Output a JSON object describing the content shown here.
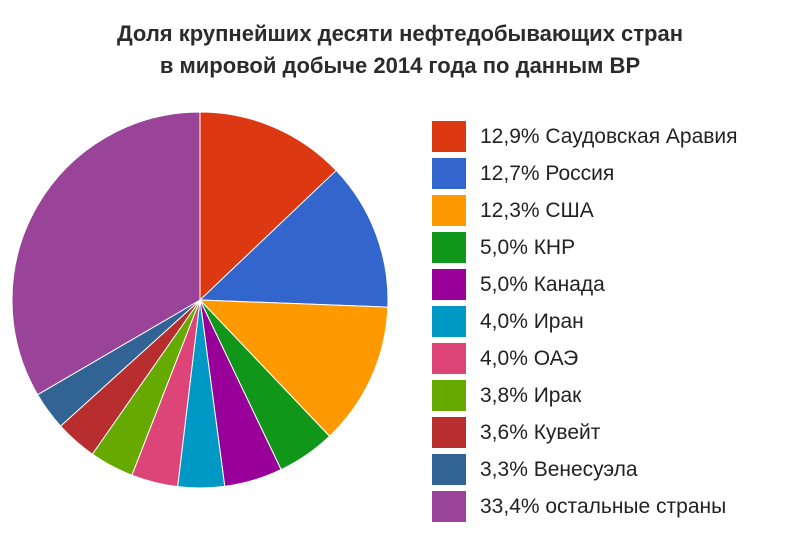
{
  "chart_data": {
    "type": "pie",
    "title_line1": "Доля крупнейших десяти нефтедобывающих стран",
    "title_line2": "в мировой добыче 2014 года по данным BP",
    "slices": [
      {
        "label": "12,9% Саудовская Аравия",
        "value": 12.9,
        "color": "#dc3912"
      },
      {
        "label": "12,7% Россия",
        "value": 12.7,
        "color": "#3366cc"
      },
      {
        "label": "12,3% США",
        "value": 12.3,
        "color": "#ff9900"
      },
      {
        "label": "5,0% КНР",
        "value": 5.0,
        "color": "#109618"
      },
      {
        "label": "5,0% Канада",
        "value": 5.0,
        "color": "#990099"
      },
      {
        "label": "4,0% Иран",
        "value": 4.0,
        "color": "#0099c6"
      },
      {
        "label": "4,0% ОАЭ",
        "value": 4.0,
        "color": "#dd4477"
      },
      {
        "label": "3,8% Ирак",
        "value": 3.8,
        "color": "#66aa00"
      },
      {
        "label": "3,6% Кувейт",
        "value": 3.6,
        "color": "#b82e2e"
      },
      {
        "label": "3,3% Венесуэла",
        "value": 3.3,
        "color": "#316395"
      },
      {
        "label": "33,4% остальные страны",
        "value": 33.4,
        "color": "#994499"
      }
    ],
    "legend_position": "right"
  }
}
